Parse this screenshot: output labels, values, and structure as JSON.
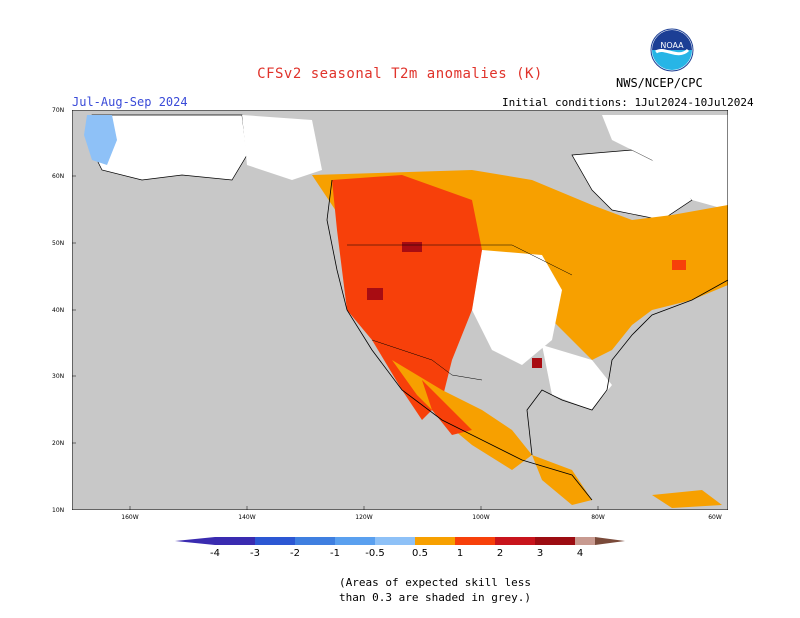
{
  "title": "CFSv2 seasonal T2m anomalies (K)",
  "agency": "NWS/NCEP/CPC",
  "logo_text": "NOAA",
  "season": "Jul-Aug-Sep 2024",
  "initial_conditions": "Initial conditions: 1Jul2024-10Jul2024",
  "lat_labels": [
    "70N",
    "60N",
    "50N",
    "40N",
    "30N",
    "20N",
    "10N"
  ],
  "lon_labels": [
    "160W",
    "140W",
    "120W",
    "100W",
    "80W",
    "60W"
  ],
  "colorbar": {
    "labels": [
      "-4",
      "-3",
      "-2",
      "-1",
      "-0.5",
      "0.5",
      "1",
      "2",
      "3",
      "4"
    ],
    "colors": [
      "#3a2bb0",
      "#2c57d3",
      "#3f7fe0",
      "#5aa0ef",
      "#8ec1f7",
      "#ffffff",
      "#f7a000",
      "#f7400a",
      "#c8141c",
      "#9c0c12",
      "#c89a90",
      "#7a4a3a"
    ]
  },
  "note_line1": "(Areas of expected skill less",
  "note_line2": "than 0.3 are shaded in grey.)",
  "map_colors": {
    "grey": "#c8c8c8",
    "white": "#ffffff",
    "orange": "#f7a000",
    "red": "#f7400a",
    "darkred": "#a80c12",
    "lightblue": "#8ec1f7"
  }
}
